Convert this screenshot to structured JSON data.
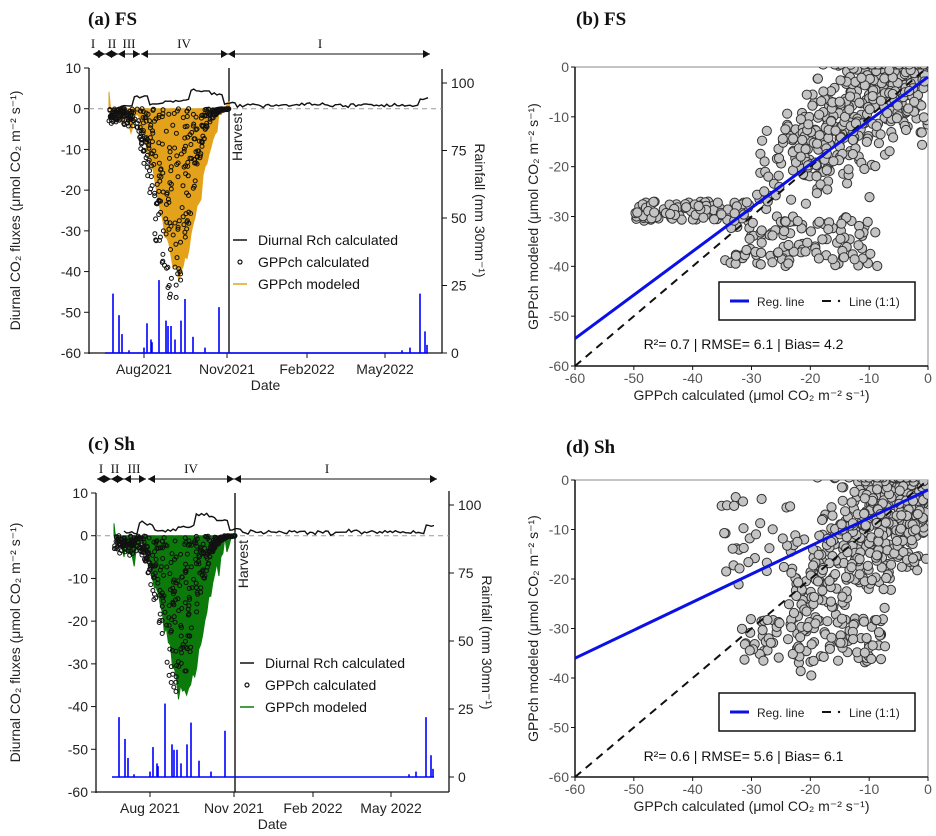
{
  "chart_data": [
    {
      "id": "a",
      "type": "line",
      "title": "(a) FS",
      "xlabel": "Date",
      "ylabel": "Diurnal CO₂ fluxes (μmol CO₂ m⁻² s⁻¹)",
      "y2label": "Rainfall (mm  30mn⁻¹)",
      "x_ticks": [
        "Aug2021",
        "Nov2021",
        "Feb2022",
        "May2022"
      ],
      "ylim": [
        -60,
        10
      ],
      "y_ticks": [
        10,
        0,
        -10,
        -20,
        -30,
        -40,
        -50,
        -60
      ],
      "y2lim": [
        0,
        100
      ],
      "y2_ticks": [
        100,
        75,
        50,
        25,
        0
      ],
      "phases": [
        "I",
        "II",
        "III",
        "IV",
        "I"
      ],
      "annotation": "Harvest",
      "legend": [
        "Diurnal Rch calculated",
        "GPPch calculated",
        "GPPch modeled"
      ],
      "legend_position": "center-right",
      "colors": {
        "rch": "#000000",
        "gpp_calc": "#000000",
        "gpp_mod": "#E3A21A",
        "rain": "#0000FF"
      },
      "series": [
        {
          "name": "Diurnal Rch calculated",
          "approx_range": [
            0.5,
            6
          ]
        },
        {
          "name": "GPPch calculated",
          "min": -50,
          "max": 0
        },
        {
          "name": "GPPch modeled",
          "min": -40,
          "max": 0
        }
      ],
      "rain_peaks_mm": [
        22,
        14,
        7,
        1,
        2,
        11,
        5,
        4,
        27,
        12,
        10,
        10,
        5,
        12,
        20,
        6,
        2,
        17,
        1,
        2,
        22,
        8,
        3
      ]
    },
    {
      "id": "b",
      "type": "scatter",
      "title": "(b) FS",
      "xlabel": "GPPch calculated (μmol CO₂ m⁻² s⁻¹)",
      "ylabel": "GPPch modeled (μmol CO₂ m⁻² s⁻¹)",
      "xlim": [
        -60,
        0
      ],
      "ylim": [
        -60,
        0
      ],
      "x_ticks": [
        -60,
        -50,
        -40,
        -30,
        -20,
        -10,
        0
      ],
      "y_ticks": [
        0,
        -10,
        -20,
        -30,
        -40,
        -50,
        -60
      ],
      "legend": [
        "Reg. line",
        "Line (1:1)"
      ],
      "legend_position": "bottom-right",
      "reg_line": {
        "x": [
          -60,
          0
        ],
        "y": [
          -54.5,
          -2
        ]
      },
      "one_to_one": {
        "x": [
          -60,
          0
        ],
        "y": [
          -60,
          0
        ]
      },
      "stats_text": "R²= 0.7 | RMSE= 6.1 | Bias= 4.2",
      "R2": 0.7,
      "RMSE": 6.1,
      "Bias": 4.2,
      "point_count_approx": 700
    },
    {
      "id": "c",
      "type": "line",
      "title": "(c) Sh",
      "xlabel": "Date",
      "ylabel": "Diurnal CO₂ fluxes (μmol CO₂ m⁻² s⁻¹)",
      "y2label": "Rainfall (mm  30mn⁻¹)",
      "x_ticks": [
        "Aug 2021",
        "Nov 2021",
        "Feb 2022",
        "May 2022"
      ],
      "ylim": [
        -60,
        10
      ],
      "y_ticks": [
        10,
        0,
        -10,
        -20,
        -30,
        -40,
        -50,
        -60
      ],
      "y2lim": [
        0,
        100
      ],
      "y2_ticks": [
        100,
        75,
        50,
        25,
        0
      ],
      "phases": [
        "I",
        "II",
        "III",
        "IV",
        "I"
      ],
      "annotation": "Harvest",
      "legend": [
        "Diurnal Rch calculated",
        "GPPch calculated",
        "GPPch modeled"
      ],
      "legend_position": "center-right",
      "colors": {
        "rch": "#000000",
        "gpp_calc": "#000000",
        "gpp_mod": "#0B7A0B",
        "rain": "#0000FF"
      },
      "series": [
        {
          "name": "Diurnal Rch calculated",
          "approx_range": [
            0.5,
            6
          ]
        },
        {
          "name": "GPPch calculated",
          "min": -37,
          "max": 0
        },
        {
          "name": "GPPch modeled",
          "min": -37,
          "max": 0
        }
      ],
      "rain_peaks_mm": [
        22,
        14,
        7,
        1,
        2,
        11,
        5,
        4,
        27,
        12,
        10,
        10,
        5,
        12,
        20,
        6,
        2,
        17,
        1,
        2,
        22,
        8,
        3
      ]
    },
    {
      "id": "d",
      "type": "scatter",
      "title": "(d) Sh",
      "xlabel": "GPPch calculated (μmol CO₂ m⁻² s⁻¹)",
      "ylabel": "GPPch modeled (μmol CO₂ m⁻² s⁻¹)",
      "xlim": [
        -60,
        0
      ],
      "ylim": [
        -60,
        0
      ],
      "x_ticks": [
        -60,
        -50,
        -40,
        -30,
        -20,
        -10,
        0
      ],
      "y_ticks": [
        0,
        -10,
        -20,
        -30,
        -40,
        -50,
        -60
      ],
      "legend": [
        "Reg. line",
        "Line (1:1)"
      ],
      "legend_position": "bottom-right",
      "reg_line": {
        "x": [
          -60,
          0
        ],
        "y": [
          -36,
          -2
        ]
      },
      "one_to_one": {
        "x": [
          -60,
          0
        ],
        "y": [
          -60,
          0
        ]
      },
      "stats_text": "R²= 0.6 | RMSE= 5.6 | Bias= 6.1",
      "R2": 0.6,
      "RMSE": 5.6,
      "Bias": 6.1,
      "point_count_approx": 700
    }
  ]
}
